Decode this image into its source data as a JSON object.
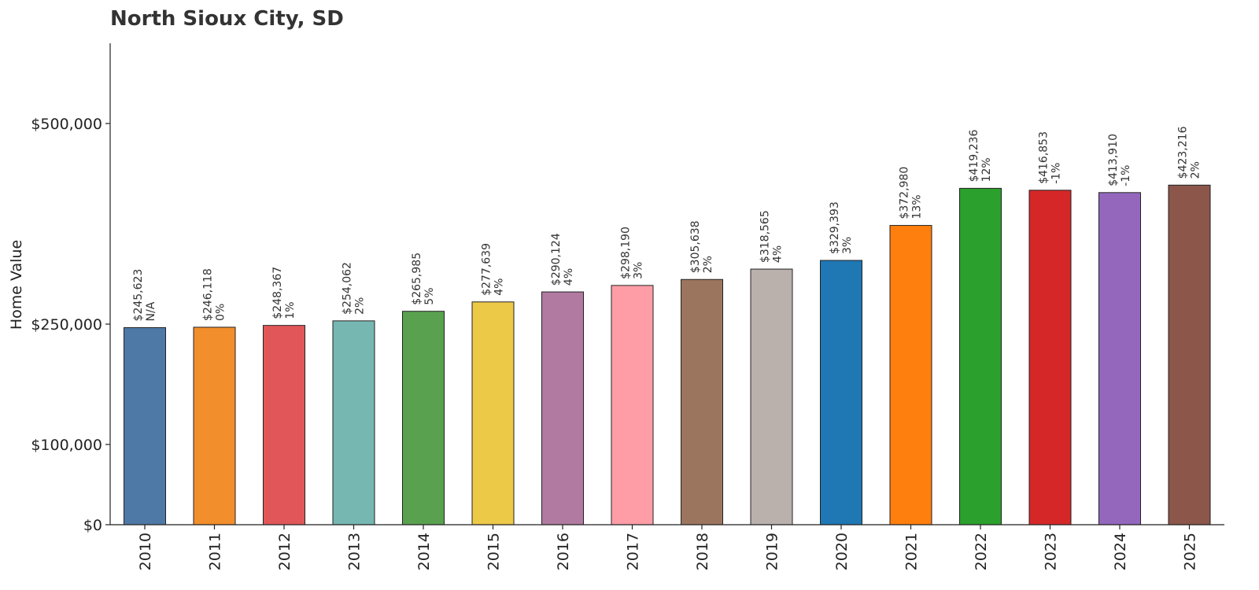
{
  "chart_data": {
    "type": "bar",
    "title": "North Sioux City, SD",
    "ylabel": "Home Value",
    "xlabel": "",
    "categories": [
      "2010",
      "2011",
      "2012",
      "2013",
      "2014",
      "2015",
      "2016",
      "2017",
      "2018",
      "2019",
      "2020",
      "2021",
      "2022",
      "2023",
      "2024",
      "2025"
    ],
    "values": [
      245623,
      246118,
      248367,
      254062,
      265985,
      277639,
      290124,
      298190,
      305638,
      318565,
      329393,
      372980,
      419236,
      416853,
      413910,
      423216
    ],
    "value_labels": [
      "$245,623",
      "$246,118",
      "$248,367",
      "$254,062",
      "$265,985",
      "$277,639",
      "$290,124",
      "$298,190",
      "$305,638",
      "$318,565",
      "$329,393",
      "$372,980",
      "$419,236",
      "$416,853",
      "$413,910",
      "$423,216"
    ],
    "change_labels": [
      "N/A",
      "0%",
      "1%",
      "2%",
      "5%",
      "4%",
      "4%",
      "3%",
      "2%",
      "4%",
      "3%",
      "13%",
      "12%",
      "-1%",
      "-1%",
      "2%"
    ],
    "colors": [
      "#4e79a7",
      "#f28e2b",
      "#e15759",
      "#76b7b2",
      "#59a14f",
      "#edc948",
      "#b07aa1",
      "#ff9da7",
      "#9c755f",
      "#bab0ac",
      "#1f77b4",
      "#ff7f0e",
      "#2ca02c",
      "#d62728",
      "#9467bd",
      "#8c564b"
    ],
    "y_ticks": [
      0,
      100000,
      250000,
      500000
    ],
    "y_tick_labels": [
      "$0",
      "$100,000",
      "$250,000",
      "$500,000"
    ],
    "ylim": [
      0,
      600000
    ],
    "grid": false,
    "legend": "none"
  }
}
